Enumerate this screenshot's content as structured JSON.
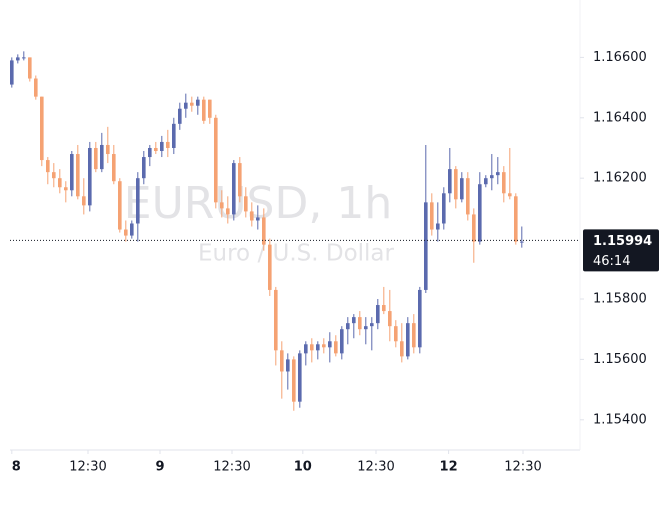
{
  "chart_data": {
    "type": "candlestick",
    "title": "EURUSD, 1h",
    "subtitle": "Euro / U.S. Dollar",
    "x": [
      0,
      1,
      2,
      3,
      4,
      5,
      6,
      7,
      8,
      9,
      10,
      11,
      12,
      13,
      14,
      15,
      16,
      17,
      18,
      19,
      20,
      21,
      22,
      23,
      24,
      25,
      26,
      27,
      28,
      29,
      30,
      31,
      32,
      33,
      34,
      35,
      36,
      37,
      38,
      39,
      40,
      41,
      42,
      43,
      44,
      45,
      46,
      47,
      48,
      49,
      50,
      51,
      52,
      53,
      54,
      55,
      56,
      57,
      58,
      59,
      60,
      61,
      62,
      63,
      64,
      65,
      66,
      67,
      68,
      69,
      70,
      71,
      72,
      73,
      74,
      75,
      76,
      77,
      78,
      79,
      80,
      81,
      82,
      83,
      84,
      85
    ],
    "open": [
      1.1651,
      1.1659,
      1.166,
      1.166,
      1.1653,
      1.1647,
      1.1626,
      1.1622,
      1.162,
      1.1617,
      1.1616,
      1.1628,
      1.1614,
      1.1611,
      1.163,
      1.1623,
      1.1631,
      1.1628,
      1.1619,
      1.1603,
      1.1601,
      1.1605,
      1.162,
      1.1627,
      1.163,
      1.1629,
      1.1632,
      1.163,
      1.1638,
      1.1643,
      1.1645,
      1.1644,
      1.1646,
      1.1646,
      1.164,
      1.1612,
      1.161,
      1.1608,
      1.1625,
      1.1614,
      1.1609,
      1.1606,
      1.1607,
      1.1598,
      1.1583,
      1.1563,
      1.1556,
      1.156,
      1.1546,
      1.1562,
      1.1565,
      1.1563,
      1.1565,
      1.1564,
      1.1566,
      1.1562,
      1.157,
      1.1572,
      1.1574,
      1.157,
      1.1571,
      1.1572,
      1.1578,
      1.1576,
      1.1571,
      1.1566,
      1.1561,
      1.1572,
      1.1564,
      1.1583,
      1.1612,
      1.1603,
      1.1605,
      1.1615,
      1.1623,
      1.1613,
      1.162,
      1.1608,
      1.1599,
      1.1618,
      1.162,
      1.1621,
      1.1622,
      1.1615,
      1.1614,
      1.1599
    ],
    "high": [
      1.166,
      1.1661,
      1.1662,
      1.166,
      1.1654,
      1.1647,
      1.1627,
      1.1625,
      1.1623,
      1.1619,
      1.1629,
      1.1631,
      1.162,
      1.1632,
      1.1632,
      1.1635,
      1.1637,
      1.1631,
      1.162,
      1.1606,
      1.1606,
      1.1622,
      1.1629,
      1.1631,
      1.1632,
      1.1634,
      1.1636,
      1.164,
      1.1645,
      1.1648,
      1.1647,
      1.1647,
      1.1647,
      1.1646,
      1.1641,
      1.1616,
      1.1614,
      1.1626,
      1.1627,
      1.1617,
      1.1612,
      1.1611,
      1.161,
      1.16,
      1.1584,
      1.1566,
      1.1562,
      1.1561,
      1.1563,
      1.1566,
      1.1567,
      1.1566,
      1.1567,
      1.1569,
      1.1568,
      1.1571,
      1.1574,
      1.1575,
      1.1576,
      1.1574,
      1.1574,
      1.158,
      1.1584,
      1.1583,
      1.1573,
      1.1572,
      1.1574,
      1.1575,
      1.1584,
      1.1631,
      1.1615,
      1.1612,
      1.1617,
      1.163,
      1.1624,
      1.1622,
      1.1622,
      1.161,
      1.1622,
      1.1621,
      1.1628,
      1.1627,
      1.1624,
      1.163,
      1.1615,
      1.1604
    ],
    "low": [
      1.165,
      1.1658,
      1.1659,
      1.1652,
      1.1646,
      1.1624,
      1.1618,
      1.1617,
      1.1615,
      1.1612,
      1.1614,
      1.1613,
      1.1608,
      1.1609,
      1.1622,
      1.1622,
      1.1625,
      1.1618,
      1.1602,
      1.1599,
      1.16,
      1.1599,
      1.1618,
      1.1624,
      1.1628,
      1.1627,
      1.1627,
      1.1628,
      1.1636,
      1.164,
      1.1642,
      1.1641,
      1.1638,
      1.1638,
      1.161,
      1.1607,
      1.1605,
      1.1606,
      1.1612,
      1.1607,
      1.1604,
      1.1603,
      1.1596,
      1.1581,
      1.1558,
      1.1547,
      1.155,
      1.1543,
      1.1544,
      1.1558,
      1.1559,
      1.156,
      1.1562,
      1.1559,
      1.1561,
      1.156,
      1.1565,
      1.1567,
      1.1568,
      1.1565,
      1.1563,
      1.157,
      1.1575,
      1.1566,
      1.1564,
      1.1559,
      1.156,
      1.1562,
      1.1562,
      1.1582,
      1.1601,
      1.1599,
      1.1603,
      1.1612,
      1.161,
      1.1612,
      1.1606,
      1.1592,
      1.1598,
      1.1617,
      1.1616,
      1.1618,
      1.1612,
      1.1613,
      1.1598,
      1.1597
    ],
    "close": [
      1.1659,
      1.166,
      1.166,
      1.1653,
      1.1647,
      1.1626,
      1.1622,
      1.162,
      1.1617,
      1.1616,
      1.1628,
      1.1614,
      1.1611,
      1.163,
      1.1623,
      1.1631,
      1.1628,
      1.1619,
      1.1603,
      1.1601,
      1.1605,
      1.162,
      1.1627,
      1.163,
      1.1629,
      1.1632,
      1.163,
      1.1638,
      1.1643,
      1.1645,
      1.1644,
      1.1646,
      1.1639,
      1.164,
      1.1612,
      1.161,
      1.1608,
      1.1625,
      1.1614,
      1.1609,
      1.1606,
      1.1607,
      1.1598,
      1.1583,
      1.1563,
      1.1556,
      1.156,
      1.1546,
      1.1562,
      1.1565,
      1.1563,
      1.1565,
      1.1564,
      1.1566,
      1.1562,
      1.157,
      1.1572,
      1.1574,
      1.157,
      1.1571,
      1.1572,
      1.1578,
      1.1576,
      1.1571,
      1.1566,
      1.1561,
      1.1572,
      1.1564,
      1.1583,
      1.1612,
      1.1603,
      1.1605,
      1.1615,
      1.1623,
      1.1613,
      1.162,
      1.1608,
      1.1599,
      1.1618,
      1.162,
      1.1621,
      1.1622,
      1.1615,
      1.1614,
      1.1599,
      1.1599
    ],
    "up_color": "#5b6aae",
    "down_color": "#f5a273",
    "xlim": [
      -0.3,
      94.7
    ],
    "xticks": [
      {
        "value": 0,
        "label": "8"
      },
      {
        "value": 12.7,
        "label": "12:30"
      },
      {
        "value": 24.7,
        "label": "9"
      },
      {
        "value": 36.7,
        "label": "12:30"
      },
      {
        "value": 48.5,
        "label": "10"
      },
      {
        "value": 60.7,
        "label": "12:30"
      },
      {
        "value": 72.8,
        "label": "12"
      },
      {
        "value": 85.2,
        "label": "12:30"
      }
    ],
    "ylim": [
      1.153,
      1.1679
    ],
    "yticks": [
      {
        "value": 1.154,
        "label": "1.15400"
      },
      {
        "value": 1.156,
        "label": "1.15600"
      },
      {
        "value": 1.158,
        "label": "1.15800"
      },
      {
        "value": 1.162,
        "label": "1.16200"
      },
      {
        "value": 1.164,
        "label": "1.16400"
      },
      {
        "value": 1.166,
        "label": "1.16600"
      }
    ],
    "last_price": 1.15994,
    "countdown": "46:14"
  }
}
